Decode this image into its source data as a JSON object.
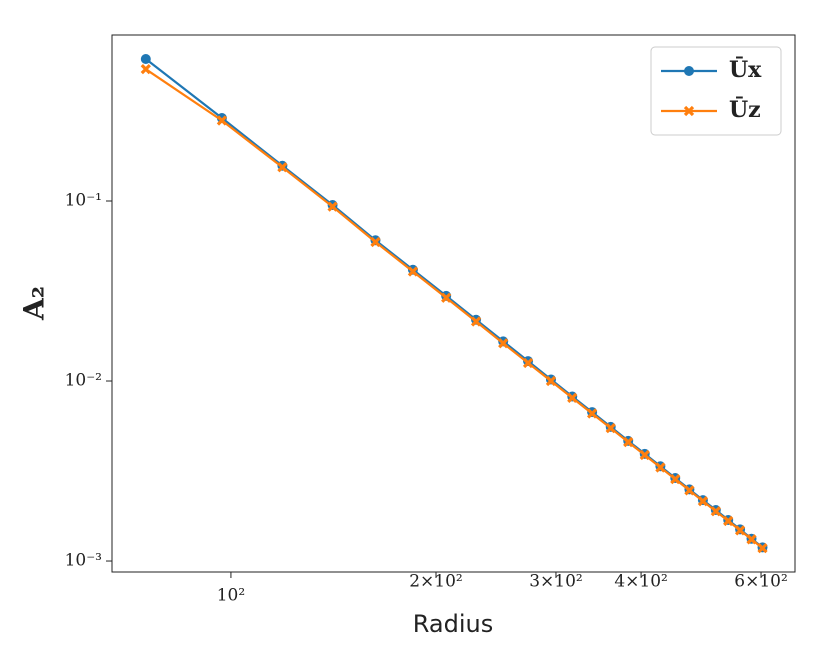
{
  "chart_data": {
    "type": "line",
    "xlabel": "Radius",
    "ylabel": "A₂",
    "xscale": "log",
    "yscale": "log",
    "x": [
      75,
      97,
      119,
      141,
      163,
      185,
      207,
      229,
      251,
      273,
      295,
      317,
      339,
      361,
      383,
      405,
      427,
      449,
      471,
      493,
      515,
      537,
      559,
      581,
      603
    ],
    "series": [
      {
        "name": "Ūx",
        "color": "#1f77b4",
        "marker": "circle",
        "values": [
          0.615,
          0.289,
          0.157,
          0.095,
          0.0605,
          0.0415,
          0.0297,
          0.0219,
          0.0166,
          0.0129,
          0.0102,
          0.0082,
          0.00672,
          0.00556,
          0.00465,
          0.00394,
          0.00336,
          0.00289,
          0.0025,
          0.00218,
          0.00192,
          0.00169,
          0.0015,
          0.00133,
          0.00119
        ]
      },
      {
        "name": "Ūz",
        "color": "#ff7f0e",
        "marker": "x",
        "values": [
          0.54,
          0.28,
          0.154,
          0.093,
          0.0592,
          0.0406,
          0.029,
          0.0214,
          0.0162,
          0.0126,
          0.01,
          0.00806,
          0.0066,
          0.00547,
          0.00458,
          0.00388,
          0.00331,
          0.00285,
          0.00247,
          0.00215,
          0.00189,
          0.00167,
          0.00148,
          0.00132,
          0.00118
        ]
      }
    ],
    "xlim": [
      66.9,
      673
    ],
    "ylim": [
      0.000869,
      0.836
    ],
    "xticks": [
      {
        "value": 100,
        "label": "10²"
      },
      {
        "value": 200,
        "label": "2×10²"
      },
      {
        "value": 300,
        "label": "3×10²"
      },
      {
        "value": 400,
        "label": "4×10²"
      },
      {
        "value": 600,
        "label": "6×10²"
      }
    ],
    "yticks": [
      {
        "value": 0.1,
        "label": "10⁻¹"
      },
      {
        "value": 0.01,
        "label": "10⁻²"
      },
      {
        "value": 0.001,
        "label": "10⁻³"
      }
    ],
    "legend": "upper right"
  }
}
